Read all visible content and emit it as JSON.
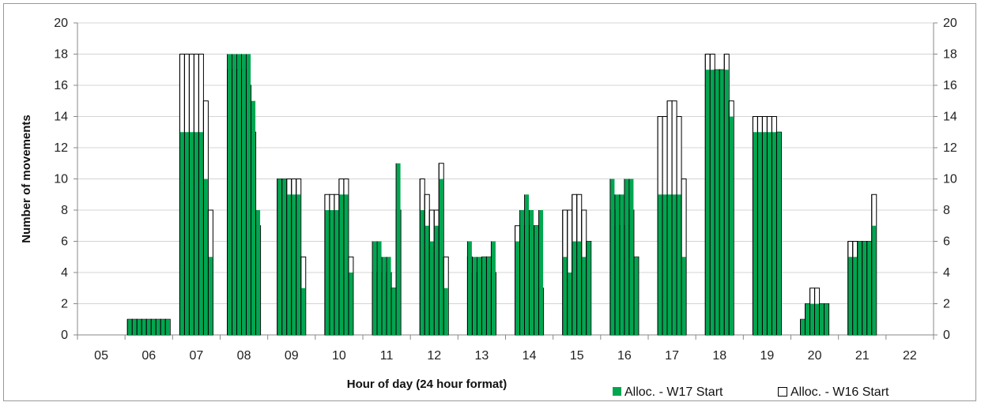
{
  "chart_data": {
    "type": "bar",
    "title": "",
    "xlabel": "Hour of day (24 hour format)",
    "ylabel": "Number of movements",
    "ylim": [
      0,
      20
    ],
    "yticks": [
      "0",
      "2",
      "4",
      "6",
      "8",
      "10",
      "12",
      "14",
      "16",
      "18",
      "20"
    ],
    "grid": true,
    "legend_position": "bottom-right",
    "categories": [
      "05",
      "06",
      "07",
      "08",
      "09",
      "10",
      "11",
      "12",
      "13",
      "14",
      "15",
      "16",
      "17",
      "18",
      "19",
      "20",
      "21",
      "22"
    ],
    "series": [
      {
        "name": "Alloc. - W17 Start",
        "color": "#00a650",
        "values": [
          [],
          [
            1,
            1,
            1,
            1,
            1,
            1,
            1,
            1,
            1
          ],
          [
            13,
            13,
            13,
            13,
            13,
            10,
            5
          ],
          [
            18,
            18,
            18,
            18,
            18,
            15,
            8
          ],
          [
            10,
            10,
            9,
            9,
            9,
            3
          ],
          [
            8,
            8,
            8,
            9,
            9,
            4
          ],
          [
            6,
            6,
            5,
            5,
            3,
            11
          ],
          [
            8,
            7,
            6,
            7,
            10,
            3
          ],
          [
            6,
            5,
            5,
            5,
            5,
            6
          ],
          [
            6,
            8,
            9,
            8,
            7,
            8
          ],
          [
            5,
            4,
            6,
            6,
            5,
            6
          ],
          [
            10,
            9,
            9,
            10,
            10,
            5
          ],
          [
            9,
            9,
            9,
            9,
            9,
            5
          ],
          [
            17,
            17,
            17,
            17,
            17,
            14
          ],
          [
            13,
            13,
            13,
            13,
            13,
            13
          ],
          [
            1,
            2,
            2,
            2,
            2,
            2
          ],
          [
            5,
            5,
            6,
            6,
            6,
            7
          ],
          []
        ]
      },
      {
        "name": "Alloc. - W16 Start",
        "color": "#ffffff",
        "values": [
          [],
          [
            1,
            1,
            1,
            1,
            1,
            1,
            1,
            1,
            1
          ],
          [
            18,
            18,
            18,
            18,
            18,
            15,
            8
          ],
          [
            17,
            17,
            17,
            17,
            16,
            13,
            7
          ],
          [
            10,
            10,
            10,
            10,
            10,
            5
          ],
          [
            9,
            9,
            9,
            10,
            10,
            5
          ],
          [
            4,
            4,
            4,
            4,
            3,
            8
          ],
          [
            10,
            9,
            8,
            8,
            11,
            5
          ],
          [
            5,
            4,
            4,
            5,
            5,
            4
          ],
          [
            7,
            7,
            7,
            7,
            7,
            3
          ],
          [
            8,
            8,
            9,
            9,
            8,
            6
          ],
          [
            8,
            7,
            7,
            7,
            8,
            5
          ],
          [
            14,
            14,
            15,
            15,
            14,
            10
          ],
          [
            18,
            18,
            17,
            17,
            18,
            15
          ],
          [
            14,
            14,
            14,
            14,
            14,
            13
          ],
          [
            1,
            2,
            3,
            3,
            2,
            2
          ],
          [
            6,
            6,
            6,
            6,
            6,
            9
          ],
          []
        ]
      }
    ]
  }
}
